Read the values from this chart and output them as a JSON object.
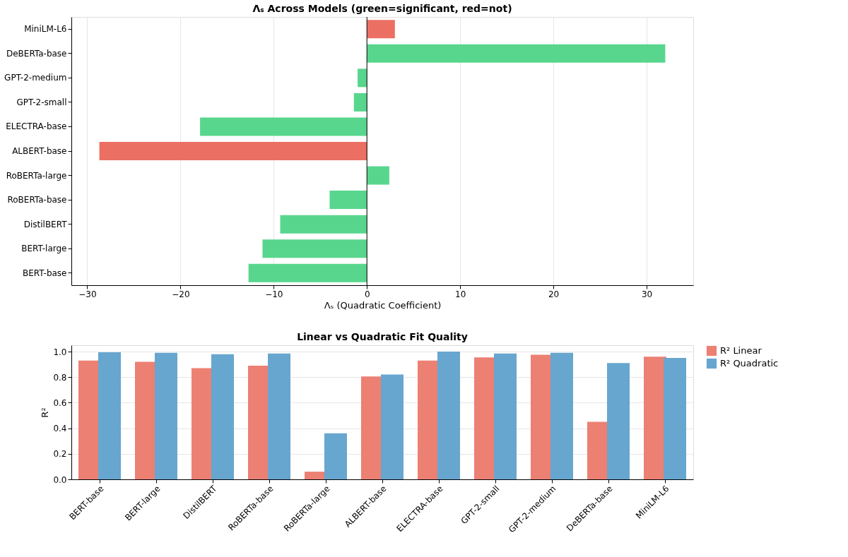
{
  "chart_data": [
    {
      "type": "bar",
      "orientation": "horizontal",
      "title": "Λₛ Across Models (green=significant, red=not)",
      "xlabel": "Λₛ (Quadratic Coefficient)",
      "categories": [
        "MiniLM-L6",
        "DeBERTa-base",
        "GPT-2-medium",
        "GPT-2-small",
        "ELECTRA-base",
        "ALBERT-base",
        "RoBERTa-large",
        "RoBERTa-base",
        "DistilBERT",
        "BERT-large",
        "BERT-base"
      ],
      "values": [
        3.0,
        32.0,
        -1.0,
        -1.4,
        -17.9,
        -28.7,
        2.4,
        -4.0,
        -9.3,
        -11.2,
        -12.7
      ],
      "colors": [
        "#eb7063",
        "#58d68d",
        "#58d68d",
        "#58d68d",
        "#58d68d",
        "#eb7063",
        "#58d68d",
        "#58d68d",
        "#58d68d",
        "#58d68d",
        "#58d68d"
      ],
      "xlim": [
        -31.7,
        35
      ],
      "xticks": [
        -30,
        -20,
        -10,
        0,
        10,
        20,
        30
      ],
      "grid": "x",
      "ref_lines": [
        {
          "axis": "x",
          "value": 0,
          "color": "#000000"
        }
      ]
    },
    {
      "type": "bar",
      "title": "Linear vs Quadratic Fit Quality",
      "ylabel": "R²",
      "categories": [
        "BERT-base",
        "BERT-large",
        "DistilBERT",
        "RoBERTa-base",
        "RoBERTa-large",
        "ALBERT-base",
        "ELECTRA-base",
        "GPT-2-small",
        "GPT-2-medium",
        "DeBERTa-base",
        "MiniLM-L6"
      ],
      "series": [
        {
          "name": "R² Linear",
          "color": "#ec8073",
          "values": [
            0.93,
            0.92,
            0.87,
            0.89,
            0.06,
            0.805,
            0.93,
            0.955,
            0.975,
            0.45,
            0.96
          ]
        },
        {
          "name": "R² Quadratic",
          "color": "#67a6cf",
          "values": [
            0.995,
            0.99,
            0.98,
            0.985,
            0.36,
            0.82,
            1.0,
            0.985,
            0.99,
            0.91,
            0.95
          ]
        }
      ],
      "ylim": [
        0,
        1.05
      ],
      "yticks": [
        {
          "value": 0,
          "label": "0.0"
        },
        {
          "value": 0.2,
          "label": "0.2"
        },
        {
          "value": 0.4,
          "label": "0.4"
        },
        {
          "value": 0.6,
          "label": "0.6"
        },
        {
          "value": 0.8,
          "label": "0.8"
        },
        {
          "value": 1.0,
          "label": "1.0"
        }
      ],
      "grid": "y",
      "legend": "top right"
    }
  ]
}
